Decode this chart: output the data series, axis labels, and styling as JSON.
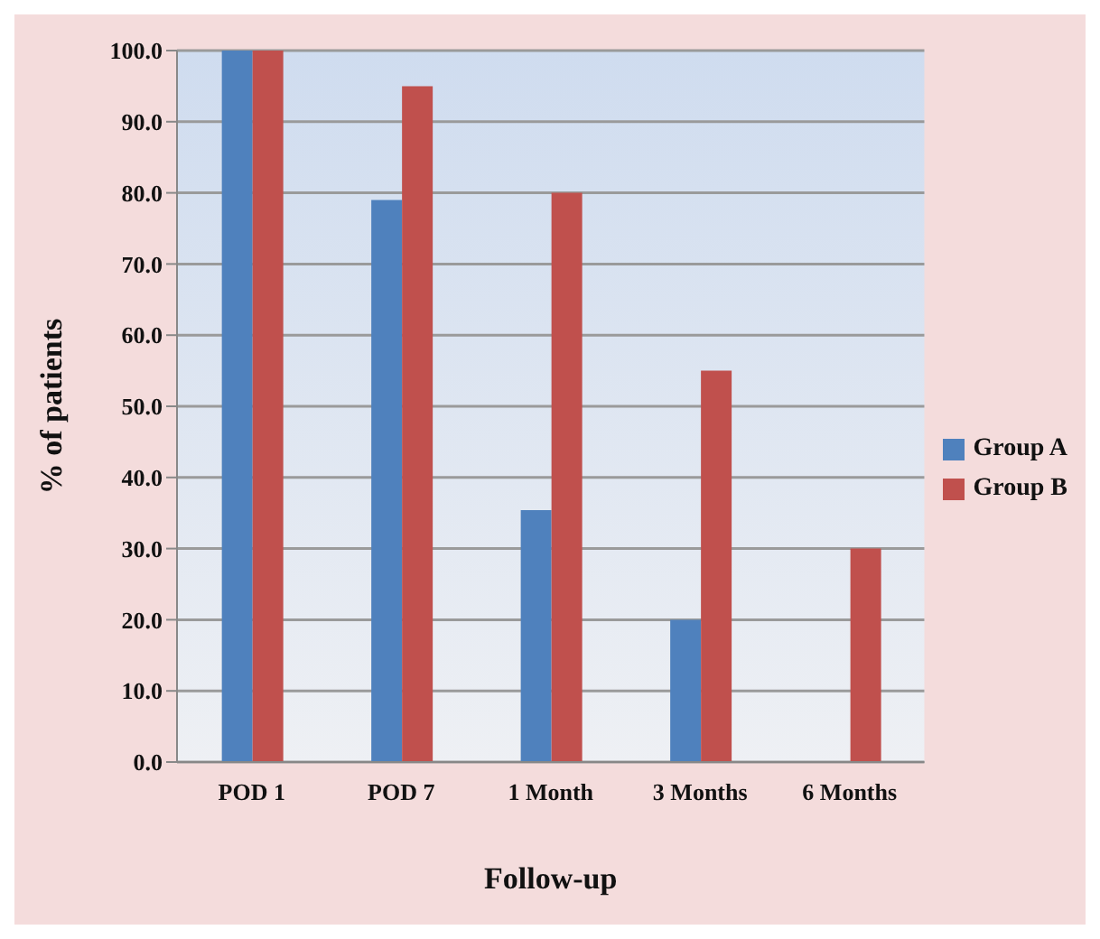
{
  "chart_data": {
    "type": "bar",
    "xlabel": "Follow-up",
    "ylabel": "% of patients",
    "categories": [
      "POD 1",
      "POD 7",
      "1 Month",
      "3 Months",
      "6 Months"
    ],
    "series": [
      {
        "name": "Group A",
        "color": "#4f81bd",
        "values": [
          100,
          79,
          35.4,
          20,
          0
        ]
      },
      {
        "name": "Group B",
        "color": "#c0504d",
        "values": [
          100,
          95,
          80,
          55,
          30
        ]
      }
    ],
    "ylim": [
      0,
      100
    ],
    "yticks": [
      {
        "value": 0,
        "label": "0.0"
      },
      {
        "value": 10,
        "label": "10.0"
      },
      {
        "value": 20,
        "label": "20.0"
      },
      {
        "value": 30,
        "label": "30.0"
      },
      {
        "value": 40,
        "label": "40.0"
      },
      {
        "value": 50,
        "label": "50.0"
      },
      {
        "value": 60,
        "label": "60.0"
      },
      {
        "value": 70,
        "label": "70.0"
      },
      {
        "value": 80,
        "label": "80.0"
      },
      {
        "value": 90,
        "label": "90.0"
      },
      {
        "value": 100,
        "label": "100.0"
      }
    ],
    "grid": "y",
    "legend": "right"
  }
}
